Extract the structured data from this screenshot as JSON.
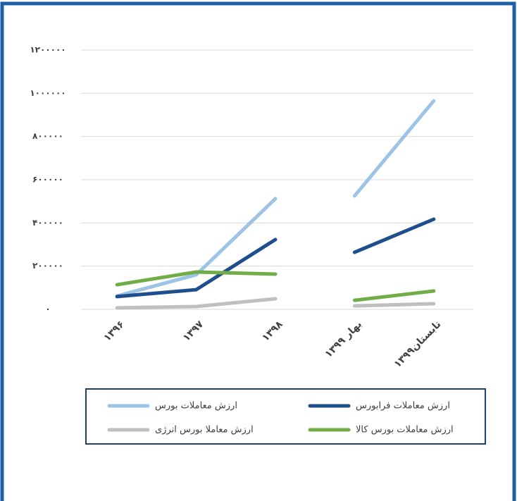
{
  "chart_data": {
    "type": "line",
    "categories": [
      "۱۳۹۶",
      "۱۳۹۷",
      "۱۳۹۸",
      "بهار ۱۳۹۹",
      "تابستان۱۳۹۹"
    ],
    "line_breaks": [
      3
    ],
    "series": [
      {
        "name": "ارزش معاملات بورس",
        "color": "#9dc3e6",
        "values": [
          62000,
          160000,
          512000,
          525000,
          965000
        ]
      },
      {
        "name": "ارزش معاملات فرابورس",
        "color": "#1f4e8c",
        "values": [
          59000,
          91000,
          323000,
          264000,
          417000
        ]
      },
      {
        "name": "ارزش معاملا بورس انرژی",
        "color": "#bfbfbf",
        "values": [
          7000,
          13000,
          49000,
          16000,
          26000
        ]
      },
      {
        "name": "ارزش معاملات بورس کالا",
        "color": "#70ad47",
        "values": [
          114000,
          173000,
          163000,
          42000,
          85000
        ]
      }
    ],
    "ylim": [
      0,
      1200000
    ],
    "yticks": [
      {
        "value": 0,
        "label": "۰"
      },
      {
        "value": 200000,
        "label": "۲۰۰۰۰۰"
      },
      {
        "value": 400000,
        "label": "۴۰۰۰۰۰"
      },
      {
        "value": 600000,
        "label": "۶۰۰۰۰۰"
      },
      {
        "value": 800000,
        "label": "۸۰۰۰۰۰"
      },
      {
        "value": 1000000,
        "label": "۱۰۰۰۰۰۰"
      },
      {
        "value": 1200000,
        "label": "۱۲۰۰۰۰۰"
      }
    ],
    "grid": true
  }
}
